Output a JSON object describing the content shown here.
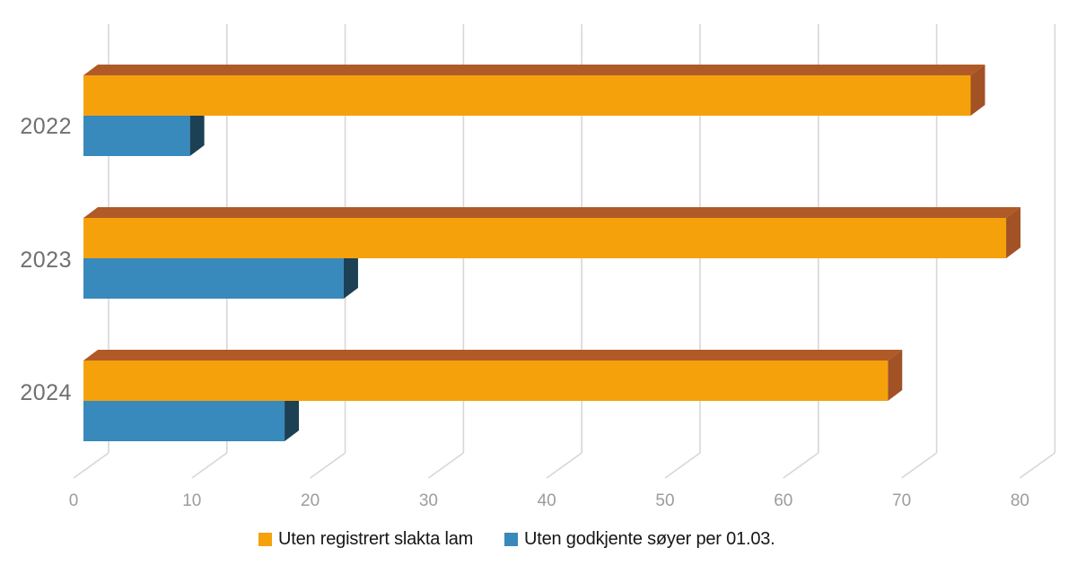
{
  "page": {
    "background": "#FFFFFF"
  },
  "chart_data": {
    "type": "bar",
    "orientation": "horizontal",
    "effect_3d": true,
    "title": "",
    "xlabel": "",
    "ylabel": "",
    "categories": [
      "2022",
      "2023",
      "2024"
    ],
    "series": [
      {
        "name": "Uten registrert slakta lam",
        "color": "#F5A10C",
        "color_top": "#B05A28",
        "color_side": "#A25224",
        "values": [
          75,
          78,
          68
        ]
      },
      {
        "name": "Uten godkjente søyer per 01.03.",
        "color": "#3889BC",
        "color_top": "#2F729C",
        "color_side": "#1C4054",
        "values": [
          9,
          22,
          17
        ]
      }
    ],
    "x_ticks": [
      0,
      10,
      20,
      30,
      40,
      50,
      60,
      70,
      80
    ],
    "xlim": [
      0,
      80
    ],
    "grid": true,
    "gridline_color": "#D7D7D7",
    "axis_label_color": "#9C9C9C",
    "category_label_color": "#6F7072",
    "legend_position": "bottom",
    "legend_text_color": "#161616"
  }
}
